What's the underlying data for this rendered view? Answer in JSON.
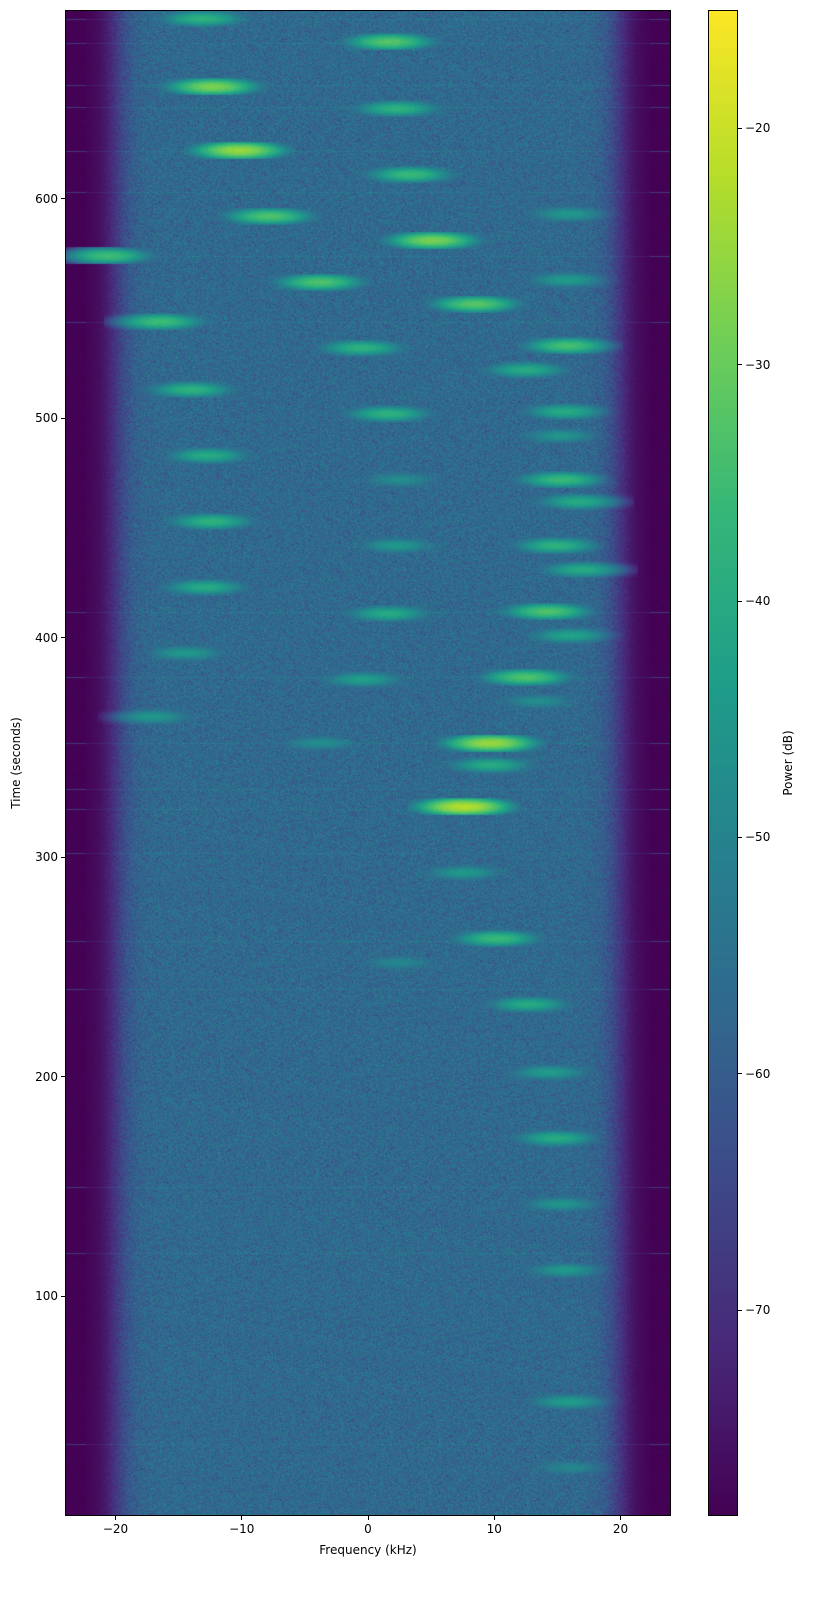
{
  "chart_data": {
    "type": "heatmap",
    "xlabel": "Frequency (kHz)",
    "ylabel": "Time (seconds)",
    "xlim": [
      -24,
      24
    ],
    "ylim": [
      0,
      686
    ],
    "xticks": [
      -20,
      -10,
      0,
      10,
      20
    ],
    "yticks": [
      100,
      200,
      300,
      400,
      500,
      600
    ],
    "xtick_labels": [
      "−20",
      "−10",
      "0",
      "10",
      "20"
    ],
    "ytick_labels": [
      "100",
      "200",
      "300",
      "400",
      "500",
      "600"
    ],
    "colormap": "viridis",
    "colorbar": {
      "label": "Power (dB)",
      "range": [
        -78.7,
        -15
      ],
      "ticks": [
        -20,
        -30,
        -40,
        -50,
        -60,
        -70
      ],
      "tick_labels": [
        "−20",
        "−30",
        "−40",
        "−50",
        "−60",
        "−70"
      ]
    },
    "noise_floor_db": -57,
    "passband_edge_khz": 21.5,
    "out_of_band_db": -78.7,
    "signals": [
      {
        "freq_khz": -13.1,
        "time_s": 682,
        "power_db": -38
      },
      {
        "freq_khz": 1.7,
        "time_s": 671.5,
        "power_db": -32
      },
      {
        "freq_khz": -12.3,
        "time_s": 651,
        "power_db": -28
      },
      {
        "freq_khz": 2.3,
        "time_s": 641,
        "power_db": -38
      },
      {
        "freq_khz": -10.2,
        "time_s": 622,
        "power_db": -25
      },
      {
        "freq_khz": 3.3,
        "time_s": 611,
        "power_db": -36
      },
      {
        "freq_khz": -7.8,
        "time_s": 592,
        "power_db": -33
      },
      {
        "freq_khz": 15.9,
        "time_s": 593,
        "power_db": -45
      },
      {
        "freq_khz": 5.1,
        "time_s": 581,
        "power_db": -28
      },
      {
        "freq_khz": -20.6,
        "time_s": 574,
        "power_db": -35
      },
      {
        "freq_khz": 15.8,
        "time_s": 563,
        "power_db": -44
      },
      {
        "freq_khz": -3.8,
        "time_s": 562,
        "power_db": -33
      },
      {
        "freq_khz": 8.5,
        "time_s": 552,
        "power_db": -32
      },
      {
        "freq_khz": -16.5,
        "time_s": 544,
        "power_db": -35
      },
      {
        "freq_khz": 15.8,
        "time_s": 533,
        "power_db": -34
      },
      {
        "freq_khz": -0.5,
        "time_s": 532,
        "power_db": -38
      },
      {
        "freq_khz": 12.5,
        "time_s": 522,
        "power_db": -40
      },
      {
        "freq_khz": -14.0,
        "time_s": 513,
        "power_db": -38
      },
      {
        "freq_khz": 15.6,
        "time_s": 503,
        "power_db": -40
      },
      {
        "freq_khz": 1.6,
        "time_s": 502,
        "power_db": -38
      },
      {
        "freq_khz": 15.2,
        "time_s": 492,
        "power_db": -46
      },
      {
        "freq_khz": -12.7,
        "time_s": 483,
        "power_db": -40
      },
      {
        "freq_khz": 15.3,
        "time_s": 472,
        "power_db": -36
      },
      {
        "freq_khz": 2.5,
        "time_s": 472,
        "power_db": -48
      },
      {
        "freq_khz": 16.7,
        "time_s": 462,
        "power_db": -40
      },
      {
        "freq_khz": -12.4,
        "time_s": 453,
        "power_db": -38
      },
      {
        "freq_khz": 14.9,
        "time_s": 442,
        "power_db": -38
      },
      {
        "freq_khz": 2.3,
        "time_s": 442,
        "power_db": -45
      },
      {
        "freq_khz": 17.0,
        "time_s": 431,
        "power_db": -40
      },
      {
        "freq_khz": -12.9,
        "time_s": 423,
        "power_db": -40
      },
      {
        "freq_khz": 14.2,
        "time_s": 412,
        "power_db": -33
      },
      {
        "freq_khz": 1.6,
        "time_s": 411,
        "power_db": -40
      },
      {
        "freq_khz": 16.0,
        "time_s": 401,
        "power_db": -42
      },
      {
        "freq_khz": -14.4,
        "time_s": 393,
        "power_db": -45
      },
      {
        "freq_khz": 12.5,
        "time_s": 382,
        "power_db": -33
      },
      {
        "freq_khz": -0.4,
        "time_s": 381,
        "power_db": -43
      },
      {
        "freq_khz": 13.5,
        "time_s": 371,
        "power_db": -48
      },
      {
        "freq_khz": -17.1,
        "time_s": 364,
        "power_db": -45
      },
      {
        "freq_khz": 9.7,
        "time_s": 352,
        "power_db": -25
      },
      {
        "freq_khz": -3.8,
        "time_s": 352,
        "power_db": -48
      },
      {
        "freq_khz": 9.7,
        "time_s": 342,
        "power_db": -40
      },
      {
        "freq_khz": 7.6,
        "time_s": 323,
        "power_db": -22
      },
      {
        "freq_khz": 7.6,
        "time_s": 293,
        "power_db": -45
      },
      {
        "freq_khz": 10.2,
        "time_s": 263,
        "power_db": -36
      },
      {
        "freq_khz": 2.4,
        "time_s": 252,
        "power_db": -50
      },
      {
        "freq_khz": 12.7,
        "time_s": 233,
        "power_db": -40
      },
      {
        "freq_khz": 14.3,
        "time_s": 202,
        "power_db": -44
      },
      {
        "freq_khz": 14.9,
        "time_s": 172,
        "power_db": -40
      },
      {
        "freq_khz": 15.3,
        "time_s": 142,
        "power_db": -46
      },
      {
        "freq_khz": 15.6,
        "time_s": 112,
        "power_db": -45
      },
      {
        "freq_khz": 15.9,
        "time_s": 52,
        "power_db": -44
      },
      {
        "freq_khz": 16.0,
        "time_s": 22,
        "power_db": -50
      }
    ],
    "broadband_lines_s": [
      682,
      671,
      652,
      642,
      622,
      603,
      574,
      544,
      412,
      382,
      352,
      331,
      322,
      302,
      262,
      240,
      150,
      120,
      33
    ]
  }
}
